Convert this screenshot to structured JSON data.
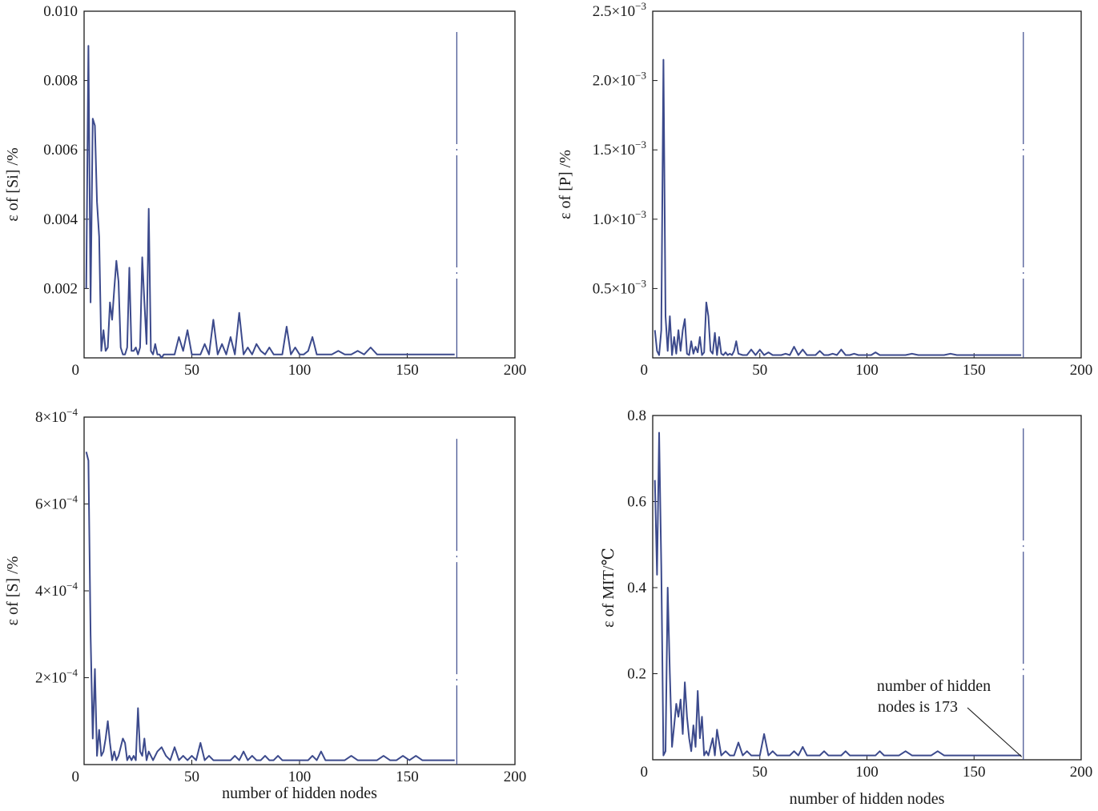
{
  "chart_data": [
    {
      "type": "line",
      "ylabel": "ε of [Si] /%",
      "xlabel": "",
      "xlim": [
        0,
        200
      ],
      "ylim": [
        0,
        0.01
      ],
      "x_ticks": [
        {
          "v": 0,
          "label": "0"
        },
        {
          "v": 50,
          "label": "50"
        },
        {
          "v": 100,
          "label": "100"
        },
        {
          "v": 150,
          "label": "150"
        },
        {
          "v": 200,
          "label": "200"
        }
      ],
      "y_ticks": [
        {
          "v": 0.002,
          "label": "0.002"
        },
        {
          "v": 0.004,
          "label": "0.004"
        },
        {
          "v": 0.006,
          "label": "0.006"
        },
        {
          "v": 0.008,
          "label": "0.008"
        },
        {
          "v": 0.01,
          "label": "0.010"
        }
      ],
      "line_color": "#3c4a8c",
      "vline": {
        "x": 173,
        "y": 0.0094
      },
      "series": [
        {
          "x": [
            1,
            2,
            3,
            4,
            5,
            6,
            7,
            8,
            9,
            10,
            11,
            12,
            13,
            14,
            15,
            16,
            17,
            18,
            19,
            20,
            21,
            22,
            23,
            24,
            25,
            26,
            27,
            28,
            29,
            30,
            31,
            32,
            33,
            34,
            35,
            36,
            37,
            38,
            40,
            42,
            44,
            46,
            48,
            50,
            52,
            54,
            56,
            58,
            60,
            62,
            64,
            66,
            68,
            70,
            72,
            74,
            76,
            78,
            80,
            82,
            84,
            86,
            88,
            90,
            92,
            94,
            96,
            98,
            100,
            102,
            104,
            106,
            108,
            110,
            112,
            115,
            118,
            121,
            124,
            127,
            130,
            133,
            136,
            139,
            142,
            145,
            148,
            151,
            154,
            157,
            160,
            163,
            166,
            169,
            172
          ],
          "y": [
            0.002,
            0.009,
            0.0016,
            0.0069,
            0.0067,
            0.0045,
            0.0035,
            0.0002,
            0.0008,
            0.0002,
            0.0003,
            0.0016,
            0.0011,
            0.002,
            0.0028,
            0.0022,
            0.0003,
            0.0001,
            0.0001,
            0.0003,
            0.0026,
            0.0002,
            0.0002,
            0.0003,
            0.0001,
            0.0003,
            0.0029,
            0.0016,
            0.0004,
            0.0043,
            0.0002,
            0.0001,
            0.0004,
            0.0001,
            0.0001,
            0.0,
            0.0001,
            0.0001,
            0.0001,
            0.0001,
            0.0006,
            0.0002,
            0.0008,
            0.0001,
            0.0001,
            0.0001,
            0.0004,
            0.0001,
            0.0011,
            0.0001,
            0.0004,
            0.0001,
            0.0006,
            0.0001,
            0.0013,
            0.0001,
            0.0003,
            0.0001,
            0.0004,
            0.0002,
            0.0001,
            0.0003,
            0.0001,
            0.0001,
            0.0001,
            0.0009,
            0.0001,
            0.0003,
            0.0001,
            0.0001,
            0.0002,
            0.0006,
            0.0001,
            0.0001,
            0.0001,
            0.0001,
            0.0002,
            0.0001,
            0.0001,
            0.0002,
            0.0001,
            0.0003,
            0.0001,
            0.0001,
            0.0001,
            0.0001,
            0.0001,
            0.0001,
            0.0001,
            0.0001,
            0.0001,
            0.0001,
            0.0001,
            0.0001,
            0.0001
          ]
        }
      ]
    },
    {
      "type": "line",
      "ylabel": "ε of [P] /%",
      "xlabel": "",
      "xlim": [
        0,
        200
      ],
      "ylim": [
        0,
        0.0025
      ],
      "x_ticks": [
        {
          "v": 0,
          "label": "0"
        },
        {
          "v": 50,
          "label": "50"
        },
        {
          "v": 100,
          "label": "100"
        },
        {
          "v": 150,
          "label": "150"
        },
        {
          "v": 200,
          "label": "200"
        }
      ],
      "y_ticks": [
        {
          "v": 0.0005,
          "label": "0.5×10",
          "exp": "−3"
        },
        {
          "v": 0.001,
          "label": "1.0×10",
          "exp": "−3"
        },
        {
          "v": 0.0015,
          "label": "1.5×10",
          "exp": "−3"
        },
        {
          "v": 0.002,
          "label": "2.0×10",
          "exp": "−3"
        },
        {
          "v": 0.0025,
          "label": "2.5×10",
          "exp": "−3"
        }
      ],
      "line_color": "#3c4a8c",
      "vline": {
        "x": 173,
        "y": 0.00235
      },
      "series": [
        {
          "x": [
            1,
            2,
            3,
            4,
            5,
            6,
            7,
            8,
            9,
            10,
            11,
            12,
            13,
            14,
            15,
            16,
            17,
            18,
            19,
            20,
            21,
            22,
            23,
            24,
            25,
            26,
            27,
            28,
            29,
            30,
            31,
            32,
            33,
            34,
            35,
            36,
            37,
            38,
            39,
            40,
            42,
            44,
            46,
            48,
            50,
            52,
            54,
            56,
            58,
            60,
            62,
            64,
            66,
            68,
            70,
            72,
            74,
            76,
            78,
            80,
            82,
            84,
            86,
            88,
            90,
            92,
            94,
            96,
            98,
            100,
            102,
            104,
            106,
            108,
            110,
            112,
            115,
            118,
            121,
            124,
            127,
            130,
            133,
            136,
            139,
            142,
            145,
            148,
            151,
            154,
            157,
            160,
            163,
            166,
            169,
            172
          ],
          "y": [
            0.0002,
            5e-05,
            2e-05,
            0.0002,
            0.00215,
            0.0003,
            5e-05,
            0.0003,
            2e-05,
            0.00015,
            3e-05,
            0.0002,
            5e-05,
            0.0002,
            0.00028,
            3e-05,
            2e-05,
            0.00012,
            3e-05,
            8e-05,
            4e-05,
            0.00015,
            2e-05,
            4e-05,
            0.0004,
            0.0003,
            5e-05,
            3e-05,
            0.00018,
            2e-05,
            0.00015,
            3e-05,
            2e-05,
            4e-05,
            2e-05,
            3e-05,
            2e-05,
            5e-05,
            0.00012,
            3e-05,
            2e-05,
            2e-05,
            6e-05,
            2e-05,
            6e-05,
            2e-05,
            4e-05,
            2e-05,
            2e-05,
            2e-05,
            3e-05,
            2e-05,
            8e-05,
            2e-05,
            6e-05,
            2e-05,
            2e-05,
            2e-05,
            5e-05,
            2e-05,
            2e-05,
            3e-05,
            2e-05,
            6e-05,
            2e-05,
            2e-05,
            3e-05,
            2e-05,
            2e-05,
            2e-05,
            2e-05,
            4e-05,
            2e-05,
            2e-05,
            2e-05,
            2e-05,
            2e-05,
            2e-05,
            3e-05,
            2e-05,
            2e-05,
            2e-05,
            2e-05,
            2e-05,
            3e-05,
            2e-05,
            2e-05,
            2e-05,
            2e-05,
            2e-05,
            2e-05,
            2e-05,
            2e-05,
            2e-05,
            2e-05,
            2e-05
          ]
        }
      ]
    },
    {
      "type": "line",
      "ylabel": "ε of [S] /%",
      "xlabel": "number of hidden nodes",
      "xlim": [
        0,
        200
      ],
      "ylim": [
        0,
        0.0008
      ],
      "x_ticks": [
        {
          "v": 0,
          "label": "0"
        },
        {
          "v": 50,
          "label": "50"
        },
        {
          "v": 100,
          "label": "100"
        },
        {
          "v": 150,
          "label": "150"
        },
        {
          "v": 200,
          "label": "200"
        }
      ],
      "y_ticks": [
        {
          "v": 0.0002,
          "label": "2×10",
          "exp": "−4"
        },
        {
          "v": 0.0004,
          "label": "4×10",
          "exp": "−4"
        },
        {
          "v": 0.0006,
          "label": "6×10",
          "exp": "−4"
        },
        {
          "v": 0.0008,
          "label": "8×10",
          "exp": "−4"
        }
      ],
      "line_color": "#3c4a8c",
      "vline": {
        "x": 173,
        "y": 0.00075
      },
      "series": [
        {
          "x": [
            1,
            2,
            3,
            4,
            5,
            6,
            7,
            8,
            9,
            10,
            11,
            12,
            13,
            14,
            15,
            16,
            17,
            18,
            19,
            20,
            21,
            22,
            23,
            24,
            25,
            26,
            27,
            28,
            29,
            30,
            32,
            34,
            36,
            38,
            40,
            42,
            44,
            46,
            48,
            50,
            52,
            54,
            56,
            58,
            60,
            62,
            64,
            66,
            68,
            70,
            72,
            74,
            76,
            78,
            80,
            82,
            84,
            86,
            88,
            90,
            92,
            94,
            96,
            98,
            100,
            102,
            104,
            106,
            108,
            110,
            112,
            115,
            118,
            121,
            124,
            127,
            130,
            133,
            136,
            139,
            142,
            145,
            148,
            151,
            154,
            157,
            160,
            163,
            166,
            169,
            172
          ],
          "y": [
            0.00072,
            0.0007,
            0.0003,
            6e-05,
            0.00022,
            2e-05,
            8e-05,
            2e-05,
            3e-05,
            6e-05,
            0.0001,
            5e-05,
            1e-05,
            3e-05,
            1e-05,
            2e-05,
            4e-05,
            6e-05,
            5e-05,
            1e-05,
            2e-05,
            1e-05,
            2e-05,
            1e-05,
            0.00013,
            3e-05,
            2e-05,
            6e-05,
            1e-05,
            3e-05,
            1e-05,
            3e-05,
            4e-05,
            2e-05,
            1e-05,
            4e-05,
            1e-05,
            2e-05,
            1e-05,
            2e-05,
            1e-05,
            5e-05,
            1e-05,
            2e-05,
            1e-05,
            1e-05,
            1e-05,
            1e-05,
            1e-05,
            2e-05,
            1e-05,
            3e-05,
            1e-05,
            2e-05,
            1e-05,
            1e-05,
            2e-05,
            1e-05,
            1e-05,
            2e-05,
            1e-05,
            1e-05,
            1e-05,
            1e-05,
            1e-05,
            1e-05,
            1e-05,
            2e-05,
            1e-05,
            3e-05,
            1e-05,
            1e-05,
            1e-05,
            1e-05,
            2e-05,
            1e-05,
            1e-05,
            1e-05,
            1e-05,
            2e-05,
            1e-05,
            1e-05,
            2e-05,
            1e-05,
            2e-05,
            1e-05,
            1e-05,
            1e-05,
            1e-05,
            1e-05,
            1e-05
          ]
        }
      ]
    },
    {
      "type": "line",
      "ylabel": "ε of  MIT/℃",
      "xlabel": "number of hidden nodes",
      "xlim": [
        0,
        200
      ],
      "ylim": [
        0,
        0.8
      ],
      "x_ticks": [
        {
          "v": 0,
          "label": "0"
        },
        {
          "v": 50,
          "label": "50"
        },
        {
          "v": 100,
          "label": "100"
        },
        {
          "v": 150,
          "label": "150"
        },
        {
          "v": 200,
          "label": "200"
        }
      ],
      "y_ticks": [
        {
          "v": 0.2,
          "label": "0.2"
        },
        {
          "v": 0.4,
          "label": "0.4"
        },
        {
          "v": 0.6,
          "label": "0.6"
        },
        {
          "v": 0.8,
          "label": "0.8"
        }
      ],
      "line_color": "#3c4a8c",
      "vline": {
        "x": 173,
        "y": 0.77
      },
      "annotation": {
        "line1": "number of hidden",
        "line2": "nodes is 173",
        "x": 173,
        "y": 0.003
      },
      "series": [
        {
          "x": [
            1,
            2,
            3,
            4,
            5,
            6,
            7,
            8,
            9,
            10,
            11,
            12,
            13,
            14,
            15,
            16,
            17,
            18,
            19,
            20,
            21,
            22,
            23,
            24,
            25,
            26,
            27,
            28,
            29,
            30,
            32,
            34,
            36,
            38,
            40,
            42,
            44,
            46,
            48,
            50,
            52,
            54,
            56,
            58,
            60,
            62,
            64,
            66,
            68,
            70,
            72,
            74,
            76,
            78,
            80,
            82,
            84,
            86,
            88,
            90,
            92,
            94,
            96,
            98,
            100,
            102,
            104,
            106,
            108,
            110,
            112,
            115,
            118,
            121,
            124,
            127,
            130,
            133,
            136,
            139,
            142,
            145,
            148,
            151,
            154,
            157,
            160,
            163,
            166,
            169,
            172
          ],
          "y": [
            0.65,
            0.43,
            0.76,
            0.45,
            0.01,
            0.02,
            0.4,
            0.2,
            0.03,
            0.08,
            0.13,
            0.1,
            0.14,
            0.06,
            0.18,
            0.1,
            0.05,
            0.02,
            0.08,
            0.03,
            0.16,
            0.05,
            0.1,
            0.01,
            0.02,
            0.01,
            0.03,
            0.05,
            0.01,
            0.07,
            0.01,
            0.02,
            0.01,
            0.01,
            0.04,
            0.01,
            0.02,
            0.01,
            0.01,
            0.01,
            0.06,
            0.01,
            0.02,
            0.01,
            0.01,
            0.01,
            0.01,
            0.02,
            0.01,
            0.03,
            0.01,
            0.01,
            0.01,
            0.01,
            0.02,
            0.01,
            0.01,
            0.01,
            0.01,
            0.02,
            0.01,
            0.01,
            0.01,
            0.01,
            0.01,
            0.01,
            0.01,
            0.02,
            0.01,
            0.01,
            0.01,
            0.01,
            0.02,
            0.01,
            0.01,
            0.01,
            0.01,
            0.02,
            0.01,
            0.01,
            0.01,
            0.01,
            0.01,
            0.01,
            0.01,
            0.01,
            0.01,
            0.01,
            0.01,
            0.01,
            0.01
          ]
        }
      ]
    }
  ]
}
